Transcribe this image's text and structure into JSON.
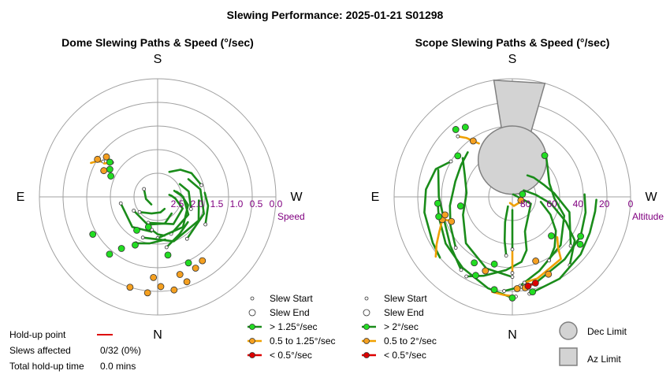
{
  "title": "Slewing Performance: 2025-01-21 S01298",
  "colors": {
    "fast": "#1a8c1a",
    "fast_marker": "#22dd22",
    "medium": "#f0a000",
    "medium_marker": "#f5a020",
    "slow": "#dd0000",
    "tick_text": "#800080",
    "grid": "#a0a0a0",
    "limit_fill": "#d3d3d3"
  },
  "chart_data": [
    {
      "type": "polar",
      "title": "Dome Slewing Paths & Speed (°/sec)",
      "directions": {
        "top": "S",
        "bottom": "N",
        "left": "E",
        "right": "W"
      },
      "radial_label": "Speed",
      "radial_ticks": [
        "2.5",
        "2.0",
        "1.5",
        "1.0",
        "0.5",
        "0.0"
      ],
      "rlim": [
        3.0,
        0.0
      ],
      "grid": true,
      "legend": [
        {
          "label": "Slew Start",
          "icon": "small-circle"
        },
        {
          "label": "Slew End",
          "icon": "large-circle"
        },
        {
          "label": "> 1.25°/sec",
          "icon": "fast-line"
        },
        {
          "label": "0.5 to 1.25°/sec",
          "icon": "medium-line"
        },
        {
          "label": "< 0.5°/sec",
          "icon": "slow-line"
        }
      ],
      "fast_paths": [
        [
          [
            200,
            2.3
          ],
          [
            150,
            2.2
          ],
          [
            115,
            2.3
          ],
          [
            95,
            2.55
          ],
          [
            85,
            2.65
          ],
          [
            80,
            2.7
          ]
        ],
        [
          [
            160,
            2.0
          ],
          [
            120,
            2.1
          ],
          [
            90,
            2.35
          ],
          [
            70,
            2.55
          ]
        ],
        [
          [
            180,
            1.95
          ],
          [
            140,
            2.0
          ],
          [
            105,
            2.2
          ],
          [
            85,
            2.4
          ],
          [
            75,
            2.5
          ]
        ],
        [
          [
            110,
            2.1
          ],
          [
            80,
            2.2
          ],
          [
            60,
            2.35
          ]
        ],
        [
          [
            200,
            1.9
          ],
          [
            160,
            1.8
          ],
          [
            120,
            1.8
          ],
          [
            95,
            1.95
          ]
        ],
        [
          [
            240,
            2.3
          ],
          [
            200,
            2.25
          ],
          [
            165,
            2.3
          ],
          [
            140,
            2.45
          ]
        ],
        [
          [
            260,
            2.05
          ],
          [
            220,
            2.0
          ],
          [
            190,
            2.1
          ]
        ],
        [
          [
            230,
            2.4
          ],
          [
            200,
            2.55
          ],
          [
            170,
            2.6
          ],
          [
            150,
            2.65
          ]
        ],
        [
          [
            300,
            2.6
          ],
          [
            260,
            2.7
          ],
          [
            220,
            2.75
          ]
        ],
        [
          [
            145,
            1.7
          ],
          [
            110,
            1.75
          ],
          [
            80,
            1.9
          ],
          [
            60,
            2.1
          ]
        ],
        [
          [
            170,
            1.7
          ],
          [
            150,
            1.9
          ],
          [
            130,
            2.0
          ]
        ],
        [
          [
            205,
            1.7
          ],
          [
            190,
            1.8
          ],
          [
            170,
            1.9
          ]
        ],
        [
          [
            75,
            1.85
          ],
          [
            55,
            1.95
          ],
          [
            40,
            2.1
          ],
          [
            25,
            2.3
          ]
        ],
        [
          [
            190,
            2.15
          ],
          [
            180,
            2.05
          ],
          [
            170,
            2.0
          ]
        ],
        [
          [
            120,
            1.6
          ],
          [
            100,
            1.7
          ],
          [
            85,
            1.8
          ]
        ]
      ],
      "medium_paths": [
        [
          [
            303,
            1.35
          ],
          [
            300,
            1.2
          ],
          [
            297,
            1.1
          ]
        ],
        [
          [
            307,
            1.55
          ],
          [
            302,
            1.4
          ]
        ]
      ],
      "fast_ends": [
        [
          205,
          1.65
        ],
        [
          170,
          1.5
        ],
        [
          215,
          1.4
        ],
        [
          155,
          1.15
        ],
        [
          220,
          1.1
        ],
        [
          240,
          1.1
        ],
        [
          294,
          1.7
        ],
        [
          300,
          1.6
        ],
        [
          306,
          1.5
        ],
        [
          212,
          2.0
        ],
        [
          197,
          2.2
        ]
      ],
      "medium_ends": [
        [
          186,
          0.55
        ],
        [
          197,
          0.6
        ],
        [
          170,
          0.6
        ],
        [
          161,
          0.72
        ],
        [
          178,
          0.72
        ],
        [
          152,
          0.95
        ],
        [
          164,
          0.95
        ],
        [
          145,
          1.02
        ],
        [
          183,
          0.95
        ],
        [
          302,
          1.2
        ],
        [
          308,
          1.35
        ],
        [
          296,
          1.48
        ]
      ]
    },
    {
      "type": "polar",
      "title": "Scope Slewing Paths & Speed (°/sec)",
      "directions": {
        "top": "S",
        "bottom": "N",
        "left": "E",
        "right": "W"
      },
      "radial_label": "Altitude",
      "radial_ticks": [
        "80",
        "60",
        "40",
        "20",
        "0"
      ],
      "rlim": [
        90,
        0
      ],
      "grid": true,
      "legend": [
        {
          "label": "Slew Start",
          "icon": "small-circle"
        },
        {
          "label": "Slew End",
          "icon": "large-circle"
        },
        {
          "label": "> 2°/sec",
          "icon": "fast-line"
        },
        {
          "label": "0.5 to 2°/sec",
          "icon": "medium-line"
        },
        {
          "label": "< 0.5°/sec",
          "icon": "slow-line"
        },
        {
          "label": "Dec Limit",
          "icon": "dec-limit"
        },
        {
          "label": "Az Limit",
          "icon": "az-limit"
        }
      ],
      "fast_paths": [
        [
          [
            185,
            18
          ],
          [
            165,
            22
          ],
          [
            140,
            28
          ],
          [
            120,
            30
          ],
          [
            102,
            33
          ],
          [
            88,
            35
          ]
        ],
        [
          [
            180,
            13
          ],
          [
            195,
            18
          ],
          [
            215,
            24
          ],
          [
            235,
            28
          ],
          [
            255,
            32
          ],
          [
            265,
            33
          ]
        ],
        [
          [
            175,
            22
          ],
          [
            160,
            30
          ],
          [
            135,
            38
          ],
          [
            110,
            48
          ],
          [
            92,
            58
          ],
          [
            70,
            60
          ],
          [
            50,
            55
          ],
          [
            40,
            50
          ]
        ],
        [
          [
            180,
            29
          ],
          [
            200,
            32
          ],
          [
            225,
            40
          ],
          [
            250,
            50
          ],
          [
            275,
            55
          ],
          [
            295,
            50
          ],
          [
            308,
            42
          ]
        ],
        [
          [
            210,
            20
          ],
          [
            200,
            26
          ],
          [
            185,
            34
          ],
          [
            172,
            40
          ],
          [
            165,
            48
          ],
          [
            160,
            62
          ],
          [
            110,
            75
          ],
          [
            20,
            88
          ]
        ],
        [
          [
            140,
            22
          ],
          [
            125,
            32
          ],
          [
            115,
            45
          ],
          [
            100,
            60
          ],
          [
            85,
            72
          ],
          [
            60,
            80
          ]
        ],
        [
          [
            170,
            15
          ],
          [
            150,
            18
          ],
          [
            130,
            22
          ],
          [
            115,
            25
          ],
          [
            100,
            26
          ],
          [
            92,
            26
          ]
        ],
        [
          [
            300,
            36
          ],
          [
            290,
            28
          ],
          [
            275,
            24
          ],
          [
            260,
            22
          ],
          [
            240,
            20
          ],
          [
            230,
            18
          ]
        ],
        [
          [
            130,
            32
          ],
          [
            105,
            45
          ],
          [
            85,
            58
          ],
          [
            70,
            64
          ],
          [
            48,
            68
          ],
          [
            35,
            70
          ]
        ],
        [
          [
            228,
            32
          ],
          [
            245,
            38
          ],
          [
            262,
            42
          ],
          [
            285,
            45
          ],
          [
            302,
            44
          ],
          [
            315,
            42
          ]
        ],
        [
          [
            180,
            50
          ],
          [
            180,
            60
          ],
          [
            180,
            70
          ],
          [
            180,
            80
          ]
        ],
        [
          [
            186,
            45
          ],
          [
            190,
            56
          ],
          [
            196,
            70
          ],
          [
            205,
            82
          ]
        ],
        [
          [
            150,
            34
          ],
          [
            140,
            40
          ],
          [
            128,
            48
          ],
          [
            115,
            58
          ],
          [
            100,
            68
          ]
        ],
        [
          [
            215,
            22
          ],
          [
            232,
            30
          ],
          [
            250,
            35
          ],
          [
            270,
            34
          ],
          [
            290,
            30
          ]
        ]
      ],
      "medium_paths": [
        [
          [
            172,
            24
          ],
          [
            163,
            25
          ],
          [
            155,
            28
          ],
          [
            142,
            30
          ],
          [
            138,
            38
          ],
          [
            132,
            44
          ]
        ],
        [
          [
            180,
            32
          ],
          [
            180,
            40
          ],
          [
            180,
            48
          ]
        ],
        [
          [
            248,
            41
          ],
          [
            252,
            34
          ],
          [
            244,
            28
          ],
          [
            238,
            22
          ],
          [
            232,
            16
          ]
        ],
        [
          [
            318,
            28
          ],
          [
            322,
            33
          ],
          [
            325,
            38
          ],
          [
            328,
            42
          ]
        ],
        [
          [
            112,
            82
          ],
          [
            170,
            83
          ],
          [
            200,
            85
          ]
        ],
        [
          [
            178,
            14
          ],
          [
            185,
            15
          ],
          [
            192,
            16
          ]
        ]
      ],
      "slow_paths": [
        [
          [
            174,
            21
          ],
          [
            170,
            22
          ],
          [
            165,
            21
          ]
        ]
      ],
      "fast_ends": [
        [
          180,
          13
        ],
        [
          168,
          16
        ],
        [
          191,
          18
        ],
        [
          205,
          24
        ],
        [
          210,
          32
        ],
        [
          255,
          32
        ],
        [
          265,
          33
        ],
        [
          135,
          48
        ],
        [
          125,
          27
        ],
        [
          120,
          30
        ],
        [
          320,
          23
        ],
        [
          326,
          26
        ],
        [
          307,
          38
        ],
        [
          38,
          50
        ],
        [
          75,
          82
        ],
        [
          260,
          50
        ],
        [
          195,
          37
        ]
      ],
      "medium_ends": [
        [
          172,
          20
        ],
        [
          177,
          20
        ],
        [
          155,
          25
        ],
        [
          200,
          30
        ],
        [
          252,
          34
        ],
        [
          248,
          40
        ],
        [
          325,
          38
        ],
        [
          112,
          83
        ],
        [
          160,
          38
        ],
        [
          255,
          37
        ]
      ],
      "slow_ends": [
        [
          170,
          21
        ],
        [
          165,
          22
        ]
      ],
      "dec_limit": {
        "center": [
          0,
          62
        ],
        "radius_deg": 26
      },
      "az_limit": {
        "az_from": 351,
        "az_to": 16,
        "alt_from": 55,
        "alt_to": 0
      }
    }
  ],
  "holdup": {
    "point_label": "Hold-up point",
    "slews_label": "Slews affected",
    "slews_value": "0/32 (0%)",
    "time_label": "Total hold-up time",
    "time_value": "0.0 mins"
  }
}
